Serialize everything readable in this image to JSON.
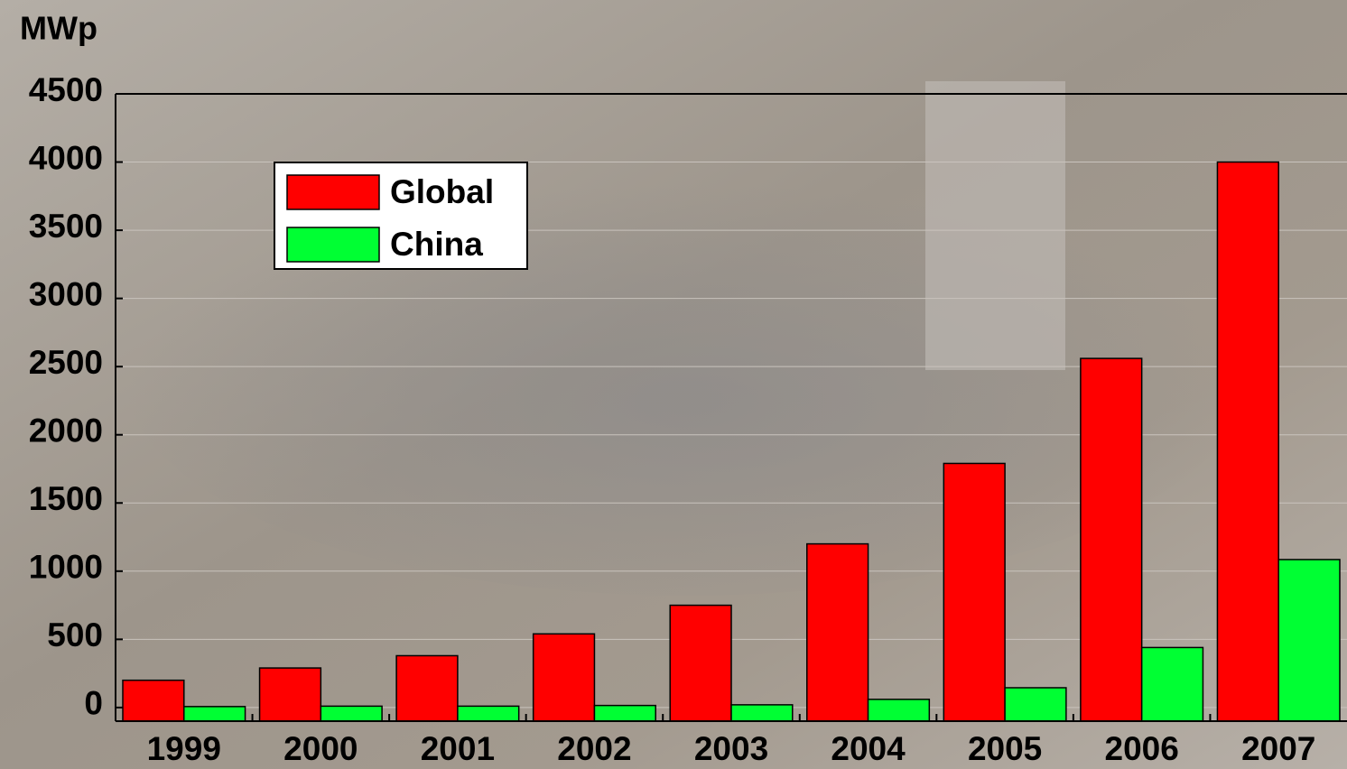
{
  "chart_data": {
    "type": "bar",
    "y_label": "MWp",
    "categories": [
      "1999",
      "2000",
      "2001",
      "2002",
      "2003",
      "2004",
      "2005",
      "2006",
      "2007"
    ],
    "series": [
      {
        "name": "Global",
        "color": "#ff0000",
        "values": [
          200,
          290,
          380,
          540,
          750,
          1200,
          1790,
          2560,
          4000
        ]
      },
      {
        "name": "China",
        "color": "#00ff33",
        "values": [
          7,
          10,
          10,
          15,
          20,
          60,
          145,
          440,
          1085
        ]
      }
    ],
    "ylim": [
      -100,
      4500
    ],
    "yticks": [
      0,
      500,
      1000,
      1500,
      2000,
      2500,
      3000,
      3500,
      4000,
      4500
    ],
    "grid": true,
    "legend": "upper left"
  }
}
